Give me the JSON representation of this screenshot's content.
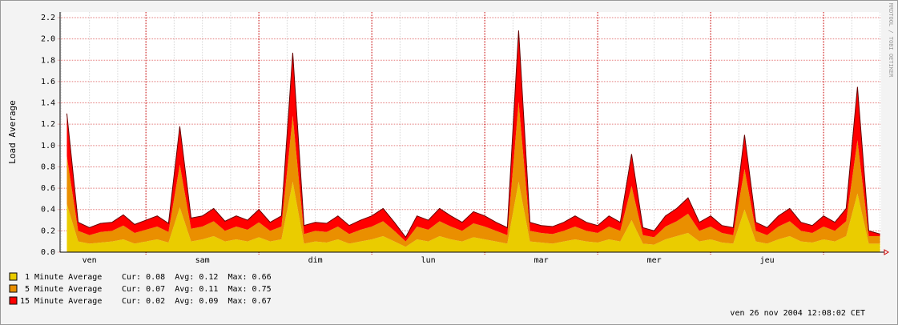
{
  "chart_data": {
    "type": "stacked_area",
    "ylabel": "Load Average",
    "watermark": "RRDTOOL / TOBI OETIKER",
    "footer": "ven 26 nov 2004 12:08:02 CET",
    "xlim": [
      0.24,
      7.51
    ],
    "ylim": [
      0,
      2.2
    ],
    "xticks": [
      {
        "value": 0.5,
        "label": "ven"
      },
      {
        "value": 1.5,
        "label": "sam"
      },
      {
        "value": 2.5,
        "label": "dim"
      },
      {
        "value": 3.5,
        "label": "lun"
      },
      {
        "value": 4.5,
        "label": "mar"
      },
      {
        "value": 5.5,
        "label": "mer"
      },
      {
        "value": 6.5,
        "label": "jeu"
      }
    ],
    "xgrid_major": [
      1,
      2,
      3,
      4,
      5,
      6,
      7
    ],
    "yticks": [
      {
        "value": 0,
        "label": "0.0"
      },
      0.2,
      0.4,
      0.6,
      0.8,
      {
        "value": 1,
        "label": "1.0"
      },
      1.2,
      1.4,
      1.6,
      1.8,
      {
        "value": 2,
        "label": "2.0"
      },
      2.2
    ],
    "grid": true,
    "x": [
      0.3,
      0.4,
      0.5,
      0.6,
      0.7,
      0.8,
      0.9,
      1.0,
      1.1,
      1.2,
      1.3,
      1.4,
      1.5,
      1.6,
      1.7,
      1.8,
      1.9,
      2.0,
      2.1,
      2.2,
      2.3,
      2.4,
      2.5,
      2.6,
      2.7,
      2.8,
      2.9,
      3.0,
      3.1,
      3.2,
      3.3,
      3.4,
      3.5,
      3.6,
      3.7,
      3.8,
      3.9,
      4.0,
      4.1,
      4.2,
      4.3,
      4.4,
      4.5,
      4.6,
      4.7,
      4.8,
      4.9,
      5.0,
      5.1,
      5.2,
      5.3,
      5.4,
      5.5,
      5.6,
      5.7,
      5.8,
      5.9,
      6.0,
      6.1,
      6.2,
      6.3,
      6.4,
      6.5,
      6.6,
      6.7,
      6.8,
      6.9,
      7.0,
      7.1,
      7.2,
      7.3,
      7.4,
      7.5
    ],
    "series": [
      {
        "name": "1 Minute Average",
        "stats": "Cur: 0.08  Avg: 0.12  Max: 0.66",
        "color": "#eacc00",
        "values": [
          0.45,
          0.1,
          0.08,
          0.09,
          0.1,
          0.12,
          0.08,
          0.1,
          0.12,
          0.09,
          0.42,
          0.1,
          0.12,
          0.15,
          0.1,
          0.12,
          0.1,
          0.14,
          0.1,
          0.12,
          0.66,
          0.08,
          0.1,
          0.09,
          0.12,
          0.08,
          0.1,
          0.12,
          0.15,
          0.1,
          0.05,
          0.12,
          0.1,
          0.15,
          0.12,
          0.1,
          0.14,
          0.12,
          0.1,
          0.08,
          0.66,
          0.1,
          0.09,
          0.08,
          0.1,
          0.12,
          0.1,
          0.09,
          0.12,
          0.1,
          0.3,
          0.08,
          0.07,
          0.12,
          0.15,
          0.18,
          0.1,
          0.12,
          0.09,
          0.08,
          0.4,
          0.1,
          0.08,
          0.12,
          0.15,
          0.1,
          0.09,
          0.12,
          0.1,
          0.15,
          0.55,
          0.08,
          0.08
        ]
      },
      {
        "name": "5 Minute Average",
        "stats": "Cur: 0.07  Avg: 0.11  Max: 0.75",
        "color": "#ea8f00",
        "values": [
          0.45,
          0.1,
          0.08,
          0.1,
          0.1,
          0.13,
          0.1,
          0.11,
          0.12,
          0.1,
          0.4,
          0.12,
          0.12,
          0.14,
          0.1,
          0.12,
          0.11,
          0.14,
          0.1,
          0.12,
          0.62,
          0.09,
          0.1,
          0.1,
          0.12,
          0.09,
          0.11,
          0.12,
          0.14,
          0.1,
          0.05,
          0.12,
          0.11,
          0.14,
          0.12,
          0.1,
          0.13,
          0.12,
          0.1,
          0.08,
          0.75,
          0.1,
          0.09,
          0.09,
          0.1,
          0.12,
          0.1,
          0.09,
          0.12,
          0.1,
          0.32,
          0.08,
          0.07,
          0.12,
          0.14,
          0.18,
          0.1,
          0.12,
          0.09,
          0.08,
          0.38,
          0.1,
          0.08,
          0.12,
          0.14,
          0.1,
          0.09,
          0.12,
          0.1,
          0.14,
          0.5,
          0.07,
          0.07
        ]
      },
      {
        "name": "15 Minute Average",
        "stats": "Cur: 0.02  Avg: 0.09  Max: 0.67",
        "color": "#ff0000",
        "values": [
          0.4,
          0.08,
          0.07,
          0.08,
          0.08,
          0.1,
          0.08,
          0.09,
          0.1,
          0.08,
          0.36,
          0.1,
          0.1,
          0.12,
          0.09,
          0.1,
          0.09,
          0.12,
          0.08,
          0.1,
          0.59,
          0.08,
          0.08,
          0.08,
          0.1,
          0.08,
          0.09,
          0.1,
          0.12,
          0.08,
          0.04,
          0.1,
          0.09,
          0.12,
          0.1,
          0.08,
          0.11,
          0.1,
          0.08,
          0.07,
          0.67,
          0.08,
          0.07,
          0.07,
          0.08,
          0.1,
          0.08,
          0.07,
          0.1,
          0.08,
          0.3,
          0.07,
          0.06,
          0.1,
          0.12,
          0.15,
          0.08,
          0.1,
          0.07,
          0.07,
          0.32,
          0.08,
          0.07,
          0.1,
          0.12,
          0.08,
          0.07,
          0.1,
          0.08,
          0.12,
          0.5,
          0.05,
          0.02
        ]
      }
    ]
  }
}
